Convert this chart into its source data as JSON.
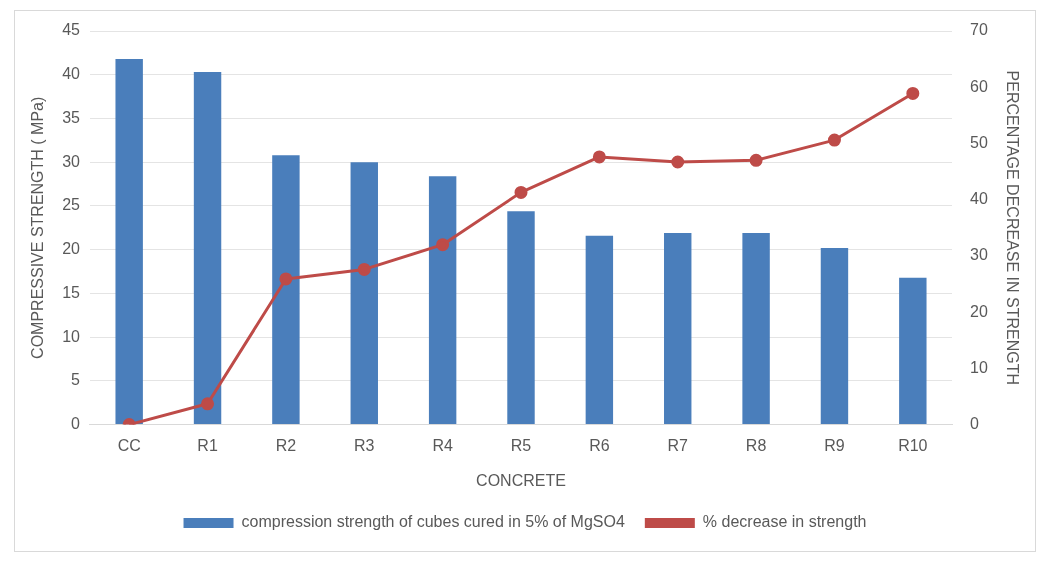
{
  "chart_data": {
    "type": "bar",
    "xlabel": "CONCRETE",
    "ylabel": "COMPRESSIVE STRENGTH ( MPa)",
    "y2label": "PERCENTAGE DECREASE IN STRENGTH",
    "categories": [
      "CC",
      "R1",
      "R2",
      "R3",
      "R4",
      "R5",
      "R6",
      "R7",
      "R8",
      "R9",
      "R10"
    ],
    "series": [
      {
        "name": "compression strength of cubes cured in 5% of MgSO4",
        "color": "#4a7ebb",
        "values": [
          41.8,
          40.3,
          30.8,
          30.0,
          28.4,
          24.4,
          21.6,
          21.9,
          21.9,
          20.2,
          16.8
        ]
      },
      {
        "name": "% decrease in strength",
        "type": "line",
        "axis": "y2",
        "color": "#be4b48",
        "values": [
          0,
          3.7,
          25.9,
          27.6,
          32.0,
          41.3,
          47.6,
          46.7,
          47.0,
          50.6,
          58.9
        ]
      }
    ],
    "ylim": [
      0,
      45
    ],
    "yticks": [
      0,
      5,
      10,
      15,
      20,
      25,
      30,
      35,
      40,
      45
    ],
    "y2lim": [
      0,
      70
    ],
    "y2ticks": [
      0,
      10,
      20,
      30,
      40,
      50,
      60,
      70
    ],
    "grid": "y",
    "legend": "bottom",
    "marker": "circle",
    "line_style": "solid"
  }
}
